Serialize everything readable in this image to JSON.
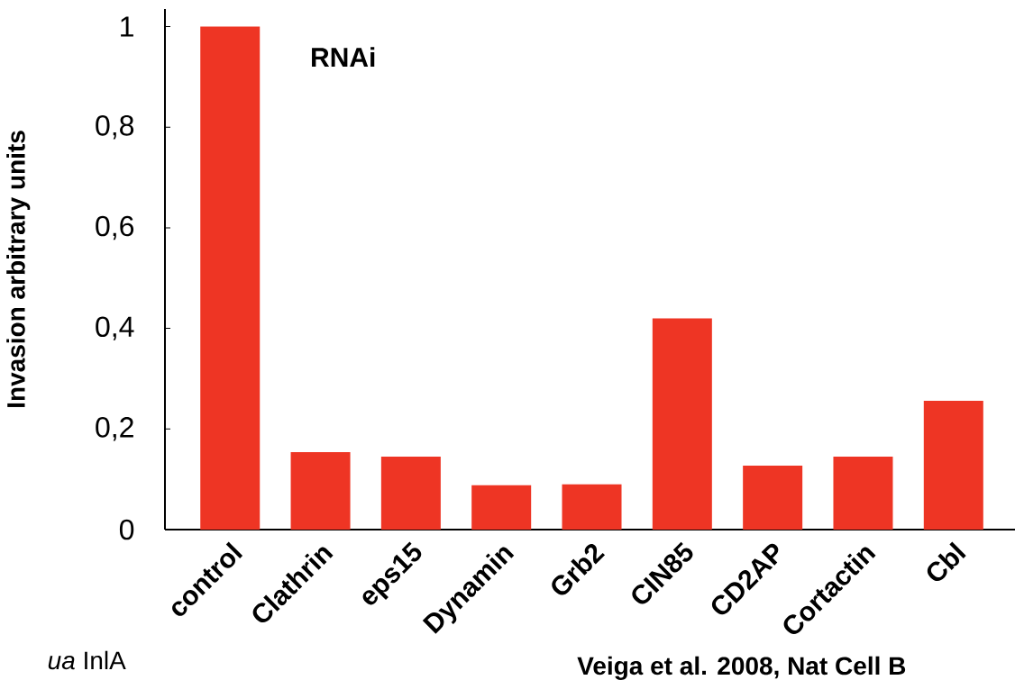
{
  "chart_data": {
    "type": "bar",
    "title": "RNAi",
    "ylabel": "Invasion arbitrary units",
    "categories": [
      "control",
      "Clathrin",
      "eps15",
      "Dynamin",
      "Grb2",
      "CIN85",
      "CD2AP",
      "Cortactin",
      "Cbl"
    ],
    "values": [
      1.0,
      0.154,
      0.145,
      0.088,
      0.09,
      0.42,
      0.127,
      0.145,
      0.256
    ],
    "color": "#ee3524",
    "ylim": [
      0,
      1.035
    ],
    "yticks": [
      0,
      {
        "value": 0.2,
        "label": "0,2"
      },
      {
        "value": 0.4,
        "label": "0,4"
      },
      {
        "value": 0.6,
        "label": "0,6"
      },
      {
        "value": 0.8,
        "label": "0,8"
      },
      1
    ],
    "grid": false,
    "annotations": [
      "*ua* InlA",
      "Veiga et al. 2008, Nat Cell B"
    ]
  }
}
